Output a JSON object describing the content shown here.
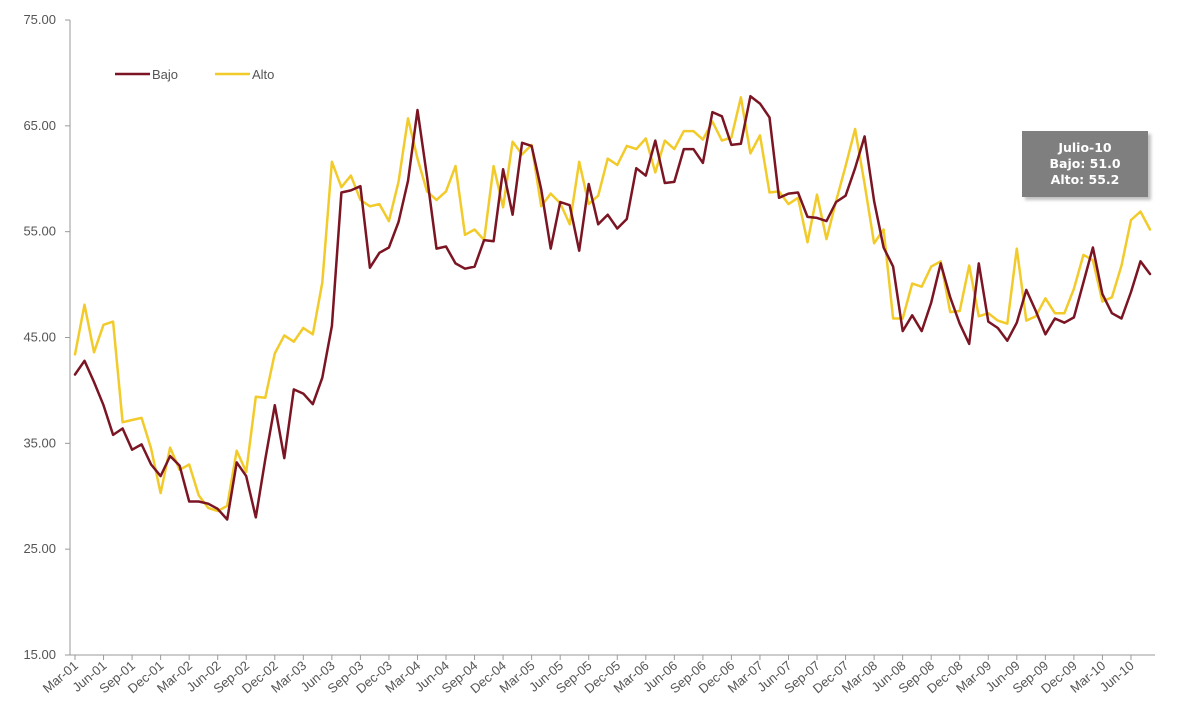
{
  "chart_data": {
    "type": "line",
    "ylim": [
      15,
      75
    ],
    "yticks": [
      "15.00",
      "25.00",
      "35.00",
      "45.00",
      "55.00",
      "65.00",
      "75.00"
    ],
    "xticks": [
      "Mar-01",
      "Jun-01",
      "Sep-01",
      "Dec-01",
      "Mar-02",
      "Jun-02",
      "Sep-02",
      "Dec-02",
      "Mar-03",
      "Jun-03",
      "Sep-03",
      "Dec-03",
      "Mar-04",
      "Jun-04",
      "Sep-04",
      "Dec-04",
      "Mar-05",
      "Jun-05",
      "Sep-05",
      "Dec-05",
      "Mar-06",
      "Jun-06",
      "Sep-06",
      "Dec-06",
      "Mar-07",
      "Jun-07",
      "Sep-07",
      "Dec-07",
      "Mar-08",
      "Jun-08",
      "Sep-08",
      "Dec-08",
      "Mar-09",
      "Jun-09",
      "Sep-09",
      "Dec-09",
      "Mar-10",
      "Jun-10"
    ],
    "legend_position": "top-left",
    "grid": false,
    "series": [
      {
        "name": "Bajo",
        "color": "#7b1523",
        "values": [
          41.5,
          42.8,
          40.8,
          38.6,
          35.8,
          36.4,
          34.4,
          34.9,
          33.0,
          31.9,
          33.8,
          32.9,
          29.5,
          29.5,
          29.3,
          28.8,
          27.8,
          33.2,
          31.9,
          28.0,
          33.5,
          38.6,
          33.6,
          40.1,
          39.7,
          38.7,
          41.2,
          46.1,
          58.7,
          58.9,
          59.3,
          51.6,
          53.0,
          53.5,
          55.9,
          59.8,
          66.5,
          60.2,
          53.4,
          53.6,
          52.0,
          51.5,
          51.7,
          54.2,
          54.1,
          60.9,
          56.6,
          63.4,
          63.1,
          59.0,
          53.4,
          57.8,
          57.5,
          53.2,
          59.5,
          55.7,
          56.6,
          55.3,
          56.2,
          61.0,
          60.3,
          63.6,
          59.6,
          59.7,
          62.8,
          62.8,
          61.5,
          66.3,
          65.9,
          63.2,
          63.3,
          67.8,
          67.1,
          65.8,
          58.2,
          58.6,
          58.7,
          56.4,
          56.3,
          56.0,
          57.8,
          58.4,
          61.0,
          64.0,
          57.9,
          53.5,
          51.7,
          45.6,
          47.1,
          45.6,
          48.3,
          52.0,
          48.8,
          46.3,
          44.4,
          52.0,
          46.5,
          45.9,
          44.7,
          46.4,
          49.5,
          47.5,
          45.3,
          46.8,
          46.4,
          46.9,
          50.2,
          53.5,
          49.1,
          47.3,
          46.8,
          49.3,
          52.2,
          51.0
        ]
      },
      {
        "name": "Alto",
        "color": "#f2cb2b",
        "values": [
          43.4,
          48.1,
          43.6,
          46.2,
          46.5,
          37.0,
          37.2,
          37.4,
          34.5,
          30.3,
          34.6,
          32.5,
          33.0,
          30.1,
          28.9,
          28.6,
          29.1,
          34.3,
          32.3,
          39.4,
          39.3,
          43.5,
          45.2,
          44.6,
          45.9,
          45.3,
          50.2,
          61.6,
          59.2,
          60.3,
          58.0,
          57.4,
          57.6,
          56.0,
          59.7,
          65.7,
          61.9,
          58.8,
          58.0,
          58.8,
          61.2,
          54.7,
          55.2,
          54.2,
          61.2,
          57.3,
          63.5,
          62.3,
          63.2,
          57.4,
          58.6,
          57.7,
          55.7,
          61.6,
          57.6,
          58.4,
          61.9,
          61.3,
          63.1,
          62.8,
          63.8,
          60.6,
          63.6,
          62.8,
          64.5,
          64.5,
          63.7,
          65.4,
          63.6,
          63.9,
          67.7,
          62.4,
          64.1,
          58.7,
          58.8,
          57.6,
          58.2,
          54.0,
          58.5,
          54.3,
          57.9,
          61.2,
          64.7,
          59.5,
          53.9,
          55.2,
          46.8,
          46.8,
          50.1,
          49.8,
          51.7,
          52.2,
          47.4,
          47.5,
          51.8,
          47.0,
          47.3,
          46.6,
          46.3,
          53.4,
          46.6,
          47.0,
          48.7,
          47.3,
          47.3,
          49.6,
          52.8,
          52.3,
          48.4,
          48.8,
          51.8,
          56.1,
          56.9,
          55.2
        ]
      }
    ]
  },
  "tooltip": {
    "line1": "Julio-10",
    "line2": "Bajo: 51.0",
    "line3": "Alto: 55.2"
  }
}
